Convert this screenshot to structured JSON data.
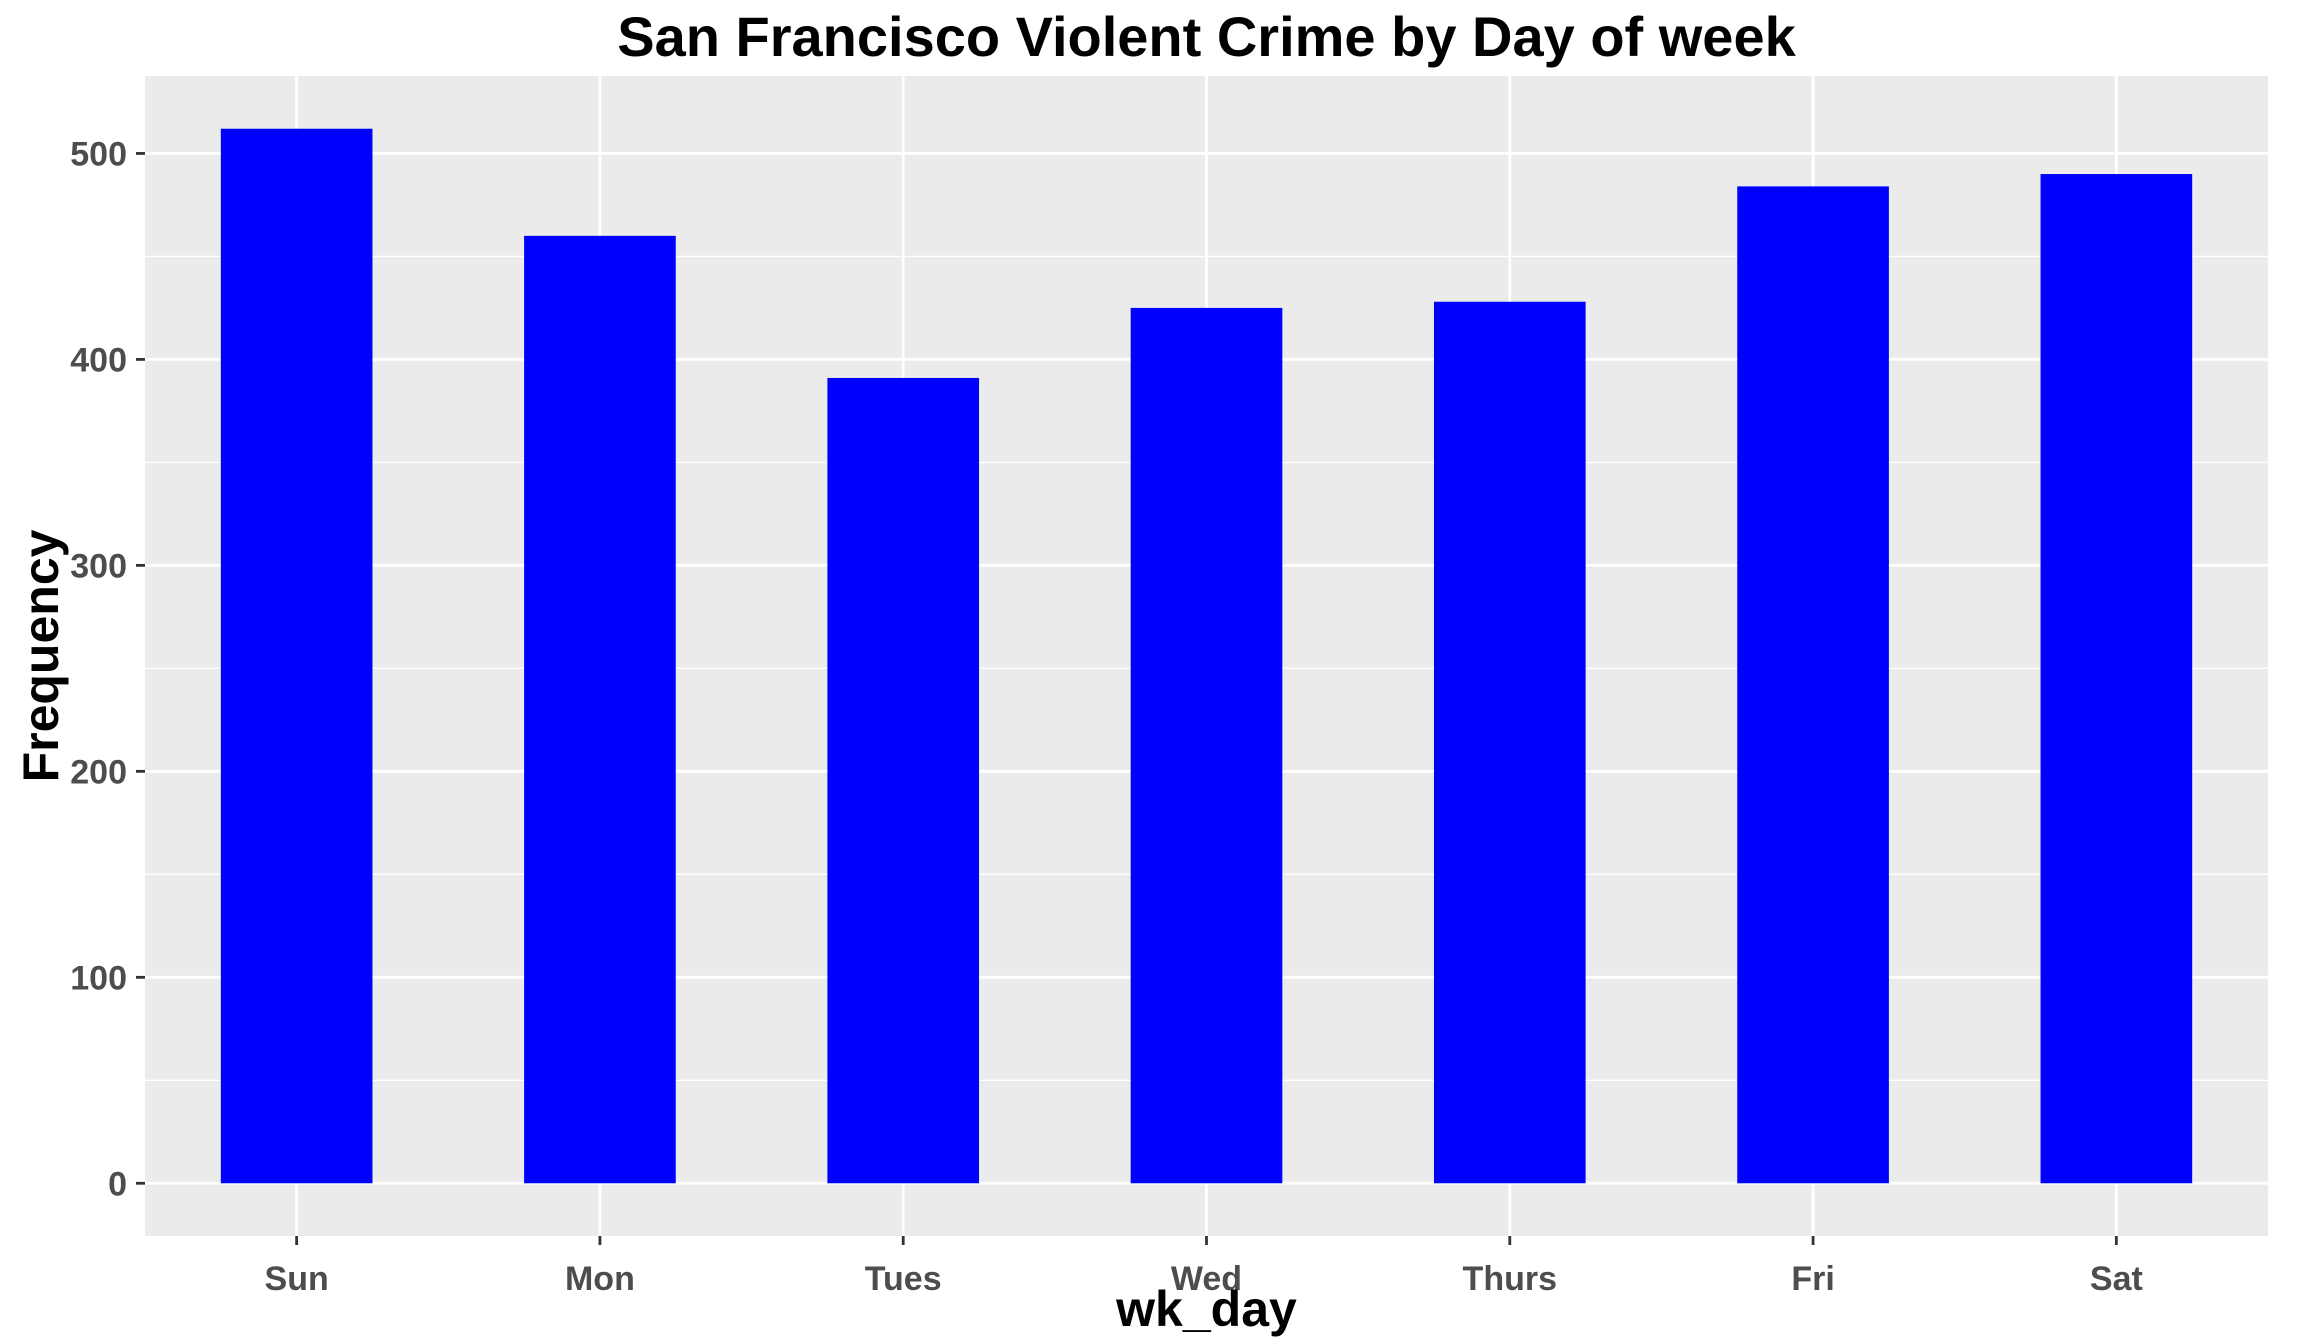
{
  "chart_data": {
    "type": "bar",
    "title": "San Francisco Violent Crime by Day of week",
    "xlabel": "wk_day",
    "ylabel": "Frequency",
    "categories": [
      "Sun",
      "Mon",
      "Tues",
      "Wed",
      "Thurs",
      "Fri",
      "Sat"
    ],
    "values": [
      512,
      460,
      391,
      425,
      428,
      484,
      490
    ],
    "ylim": [
      -25.6,
      537.6
    ],
    "yticks": [
      "0",
      "100",
      "200",
      "300",
      "400",
      "500"
    ],
    "grid": true,
    "legend": "none",
    "bar_color": "#0000ff",
    "panel_background": "#ebebeb",
    "gridline_color": "#ffffff"
  }
}
